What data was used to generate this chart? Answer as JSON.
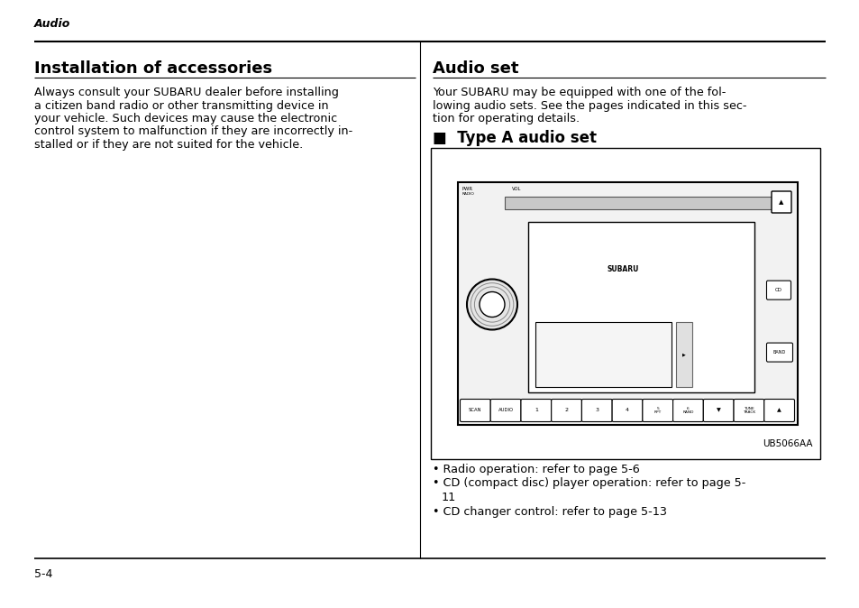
{
  "page_header_italic": "Audio",
  "left_title": "Installation of accessories",
  "left_body": "Always consult your SUBARU dealer before installing\na citizen band radio or other transmitting device in\nyour vehicle. Such devices may cause the electronic\ncontrol system to malfunction if they are incorrectly in-\nstalled or if they are not suited for the vehicle.",
  "right_title": "Audio set",
  "right_subtitle": "■  Type A audio set",
  "right_intro": "Your SUBARU may be equipped with one of the fol-\nlowing audio sets. See the pages indicated in this sec-\ntion for operating details.",
  "bullet_points": [
    "Radio operation: refer to page 5-6",
    "CD (compact disc) player operation: refer to page 5-\n11",
    "CD changer control: refer to page 5-13"
  ],
  "image_label": "UB5066AA",
  "page_number": "5-4",
  "bg_color": "#ffffff",
  "text_color": "#000000",
  "title_fontsize": 13,
  "body_fontsize": 9.2,
  "subtitle_fontsize": 12,
  "header_fontsize": 9,
  "footer_fontsize": 9
}
